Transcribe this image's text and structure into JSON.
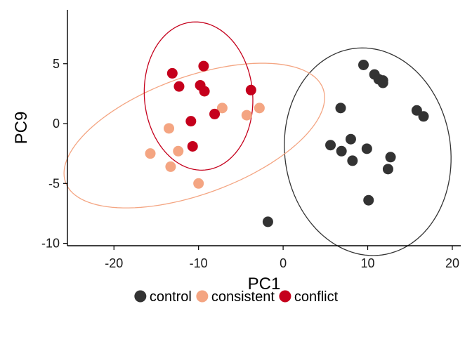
{
  "chart_data": {
    "type": "scatter",
    "xlabel": "PC1",
    "ylabel": "PC9",
    "xlim": [
      -25.5,
      21
    ],
    "ylim": [
      -10.2,
      9.5
    ],
    "xticks": [
      -20,
      -10,
      0,
      10,
      20
    ],
    "yticks": [
      -10,
      -5,
      0,
      5
    ],
    "grid": false,
    "legend_position": "bottom",
    "series": [
      {
        "name": "control",
        "color": "#333333",
        "points": [
          [
            9.5,
            4.9
          ],
          [
            10.8,
            4.1
          ],
          [
            11.3,
            3.7
          ],
          [
            11.8,
            3.6
          ],
          [
            11.8,
            3.4
          ],
          [
            6.8,
            1.3
          ],
          [
            15.8,
            1.1
          ],
          [
            16.6,
            0.6
          ],
          [
            5.6,
            -1.8
          ],
          [
            8.0,
            -1.3
          ],
          [
            6.9,
            -2.3
          ],
          [
            9.9,
            -2.1
          ],
          [
            8.2,
            -3.1
          ],
          [
            12.7,
            -2.8
          ],
          [
            12.4,
            -3.8
          ],
          [
            10.1,
            -6.4
          ],
          [
            -1.8,
            -8.2
          ]
        ],
        "ellipse": {
          "cx": 10.0,
          "cy": -2.35,
          "rx": 9.8,
          "ry": 8.7,
          "rotation_deg": 8
        }
      },
      {
        "name": "consistent",
        "color": "#F4A582",
        "points": [
          [
            -7.2,
            1.3
          ],
          [
            -4.3,
            0.7
          ],
          [
            -2.8,
            1.3
          ],
          [
            -13.5,
            -0.4
          ],
          [
            -12.4,
            -2.3
          ],
          [
            -15.7,
            -2.5
          ],
          [
            -13.3,
            -3.6
          ],
          [
            -10.0,
            -5.0
          ]
        ],
        "ellipse": {
          "cx": -10.5,
          "cy": -1.0,
          "rx": 16.2,
          "ry": 4.9,
          "rotation_deg": 20
        }
      },
      {
        "name": "conflict",
        "color": "#C5001C",
        "points": [
          [
            -13.1,
            4.2
          ],
          [
            -12.3,
            3.1
          ],
          [
            -9.4,
            4.8
          ],
          [
            -9.8,
            3.2
          ],
          [
            -9.3,
            2.7
          ],
          [
            -3.8,
            2.8
          ],
          [
            -8.1,
            0.8
          ],
          [
            -10.9,
            0.2
          ],
          [
            -10.7,
            -1.9
          ]
        ],
        "ellipse": {
          "cx": -10.0,
          "cy": 2.3,
          "rx": 6.4,
          "ry": 6.2,
          "rotation_deg": 5
        }
      }
    ]
  }
}
